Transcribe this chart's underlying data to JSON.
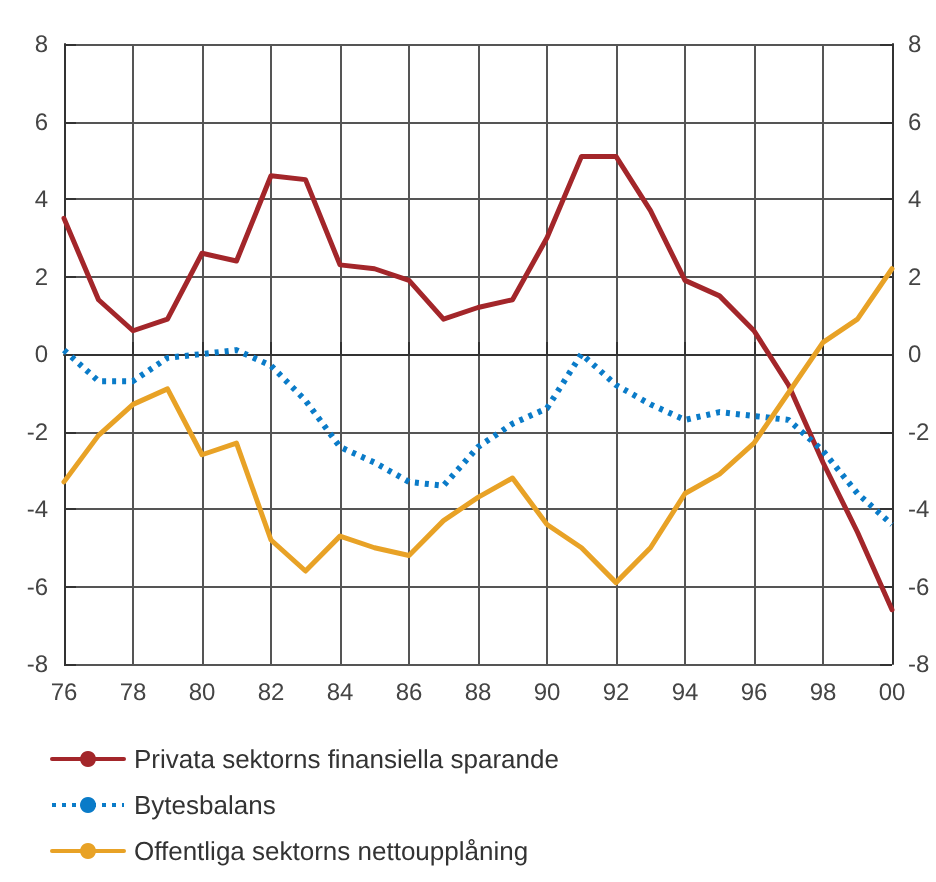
{
  "chart_data": {
    "type": "line",
    "x": [
      1976,
      1977,
      1978,
      1979,
      1980,
      1981,
      1982,
      1983,
      1984,
      1985,
      1986,
      1987,
      1988,
      1989,
      1990,
      1991,
      1992,
      1993,
      1994,
      1995,
      1996,
      1997,
      1998,
      1999,
      2000
    ],
    "series": [
      {
        "name": "Privata sektorns finansiella sparande",
        "color": "#a3262a",
        "line_style": "solid",
        "values": [
          3.5,
          1.4,
          0.6,
          0.9,
          2.6,
          2.4,
          4.6,
          4.5,
          2.3,
          2.2,
          1.9,
          0.9,
          1.2,
          1.4,
          3.0,
          5.1,
          5.1,
          3.7,
          1.9,
          1.5,
          0.6,
          -0.8,
          -2.8,
          -4.6,
          -6.6
        ]
      },
      {
        "name": "Bytesbalans",
        "color": "#0a7bc8",
        "line_style": "dotted",
        "values": [
          0.1,
          -0.7,
          -0.7,
          -0.1,
          0.0,
          0.1,
          -0.3,
          -1.2,
          -2.4,
          -2.8,
          -3.3,
          -3.4,
          -2.4,
          -1.8,
          -1.4,
          0.0,
          -0.8,
          -1.3,
          -1.7,
          -1.5,
          -1.6,
          -1.7,
          -2.5,
          -3.6,
          -4.4
        ]
      },
      {
        "name": "Offentliga sektorns nettoupplåning",
        "color": "#e8a226",
        "line_style": "solid",
        "values": [
          -3.3,
          -2.1,
          -1.3,
          -0.9,
          -2.6,
          -2.3,
          -4.8,
          -5.6,
          -4.7,
          -5.0,
          -5.2,
          -4.3,
          -3.7,
          -3.2,
          -4.4,
          -5.0,
          -5.9,
          -5.0,
          -3.6,
          -3.1,
          -2.3,
          -1.0,
          0.3,
          0.9,
          2.2
        ]
      }
    ],
    "xlim": [
      1976,
      2000
    ],
    "xticks": [
      {
        "value": 1976,
        "label": "76"
      },
      {
        "value": 1978,
        "label": "78"
      },
      {
        "value": 1980,
        "label": "80"
      },
      {
        "value": 1982,
        "label": "82"
      },
      {
        "value": 1984,
        "label": "84"
      },
      {
        "value": 1986,
        "label": "86"
      },
      {
        "value": 1988,
        "label": "88"
      },
      {
        "value": 1990,
        "label": "90"
      },
      {
        "value": 1992,
        "label": "92"
      },
      {
        "value": 1994,
        "label": "94"
      },
      {
        "value": 1996,
        "label": "96"
      },
      {
        "value": 1998,
        "label": "98"
      },
      {
        "value": 2000,
        "label": "00"
      }
    ],
    "ylim": [
      -8,
      8
    ],
    "yticks": [
      -8,
      -6,
      -4,
      -2,
      0,
      2,
      4,
      6,
      8
    ],
    "y2lim": [
      -8,
      8
    ],
    "y2ticks": [
      -8,
      -6,
      -4,
      -2,
      0,
      2,
      4,
      6,
      8
    ],
    "grid": true,
    "legend": "bottom",
    "marker": "none"
  }
}
